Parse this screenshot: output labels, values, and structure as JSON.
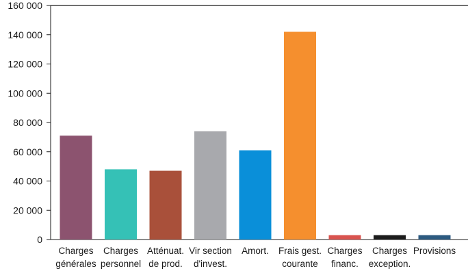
{
  "chart_data": {
    "type": "bar",
    "title": "",
    "xlabel": "",
    "ylabel": "",
    "ylim": [
      0,
      160000
    ],
    "yticks": [
      0,
      20000,
      40000,
      60000,
      80000,
      100000,
      120000,
      140000,
      160000
    ],
    "ytick_labels": [
      "0",
      "20 000",
      "40 000",
      "60 000",
      "80 000",
      "100 000",
      "120 000",
      "140 000",
      "160 000"
    ],
    "grid": false,
    "categories": [
      [
        "Charges",
        "générales"
      ],
      [
        "Charges",
        "personnel"
      ],
      [
        "Atténuat.",
        "de prod."
      ],
      [
        "Vir section",
        "d'invest."
      ],
      [
        "Amort."
      ],
      [
        "Frais gest.",
        "courante"
      ],
      [
        "Charges",
        "financ."
      ],
      [
        "Charges",
        "exception."
      ],
      [
        "Provisions"
      ]
    ],
    "values": [
      71000,
      48000,
      47000,
      74000,
      61000,
      142000,
      3000,
      3000,
      3000
    ],
    "colors": [
      "#8c536f",
      "#35c1b6",
      "#a9503a",
      "#a8a9ad",
      "#0a8fd9",
      "#f58f2e",
      "#d9534f",
      "#1c1c1c",
      "#2c5a80"
    ]
  }
}
